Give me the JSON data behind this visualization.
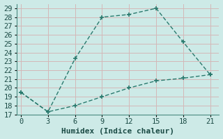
{
  "xlabel": "Humidex (Indice chaleur)",
  "bg_color": "#cdeae7",
  "grid_color": "#b8d8d5",
  "line_color": "#2a7a6e",
  "line1_x": [
    0,
    3,
    6,
    9,
    12,
    15,
    18,
    21
  ],
  "line1_y": [
    19.5,
    17.3,
    23.3,
    28.0,
    28.3,
    29.0,
    25.2,
    21.5
  ],
  "line2_x": [
    0,
    3,
    6,
    9,
    12,
    15,
    18,
    21
  ],
  "line2_y": [
    19.5,
    17.3,
    18.0,
    19.0,
    20.0,
    20.8,
    21.1,
    21.5
  ],
  "xlim": [
    -0.5,
    22
  ],
  "ylim": [
    17,
    29.5
  ],
  "xticks": [
    0,
    3,
    6,
    9,
    12,
    15,
    18,
    21
  ],
  "yticks": [
    17,
    18,
    19,
    20,
    21,
    22,
    23,
    24,
    25,
    26,
    27,
    28,
    29
  ],
  "xlabel_fontsize": 8,
  "tick_fontsize": 7.5
}
